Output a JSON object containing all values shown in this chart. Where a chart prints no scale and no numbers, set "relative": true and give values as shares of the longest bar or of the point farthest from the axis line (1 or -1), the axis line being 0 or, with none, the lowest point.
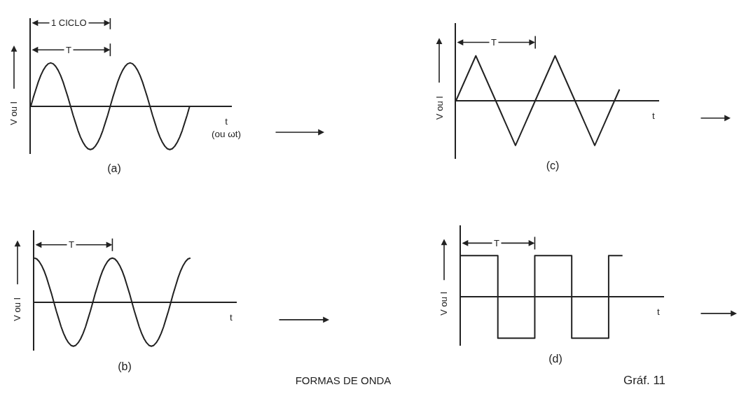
{
  "chart_data": [
    {
      "type": "line",
      "title": "(a)",
      "xlabel": "t\n(ou ωt)",
      "ylabel": "V ou I",
      "annotations": [
        "1 CICLO",
        "T"
      ],
      "relative": true,
      "color": "#222222",
      "categories": [
        null,
        null,
        null,
        null,
        null,
        null,
        null,
        null,
        null,
        null,
        null,
        null,
        null,
        null,
        null,
        null,
        null,
        null,
        null,
        null,
        null,
        null,
        null,
        null,
        null,
        null,
        null,
        null,
        null,
        null,
        null,
        null,
        null,
        null,
        null,
        null,
        null,
        null,
        null,
        null,
        null,
        null,
        null,
        null,
        null,
        null,
        null,
        null,
        null,
        null,
        null,
        null,
        null,
        null,
        null,
        null,
        null,
        null,
        null,
        null,
        null,
        null,
        null,
        null,
        null,
        null,
        null,
        null,
        null,
        null,
        null,
        null,
        null,
        null,
        null,
        null,
        null,
        null,
        null,
        null,
        null,
        null
      ],
      "values": [
        0,
        0.2,
        0.38,
        0.56,
        0.71,
        0.83,
        0.92,
        0.98,
        1,
        0.98,
        0.92,
        0.83,
        0.71,
        0.56,
        0.38,
        0.2,
        0,
        -0.2,
        -0.38,
        -0.56,
        -0.71,
        -0.83,
        -0.92,
        -0.98,
        -1,
        -0.98,
        -0.92,
        -0.83,
        -0.71,
        -0.56,
        -0.38,
        -0.2,
        0,
        0.2,
        0.38,
        0.56,
        0.71,
        0.83,
        0.92,
        0.98,
        1,
        0.98,
        0.92,
        0.83,
        0.71,
        0.56,
        0.38,
        0.2,
        0,
        -0.2,
        -0.38,
        -0.56,
        -0.71,
        -0.83,
        -0.92,
        -0.98,
        -1,
        -0.98,
        -0.92,
        -0.83,
        -0.71,
        -0.56,
        -0.38,
        -0.2,
        0,
        null,
        null,
        null,
        null,
        null,
        null,
        null,
        null,
        null,
        null,
        null,
        null,
        null,
        null,
        null,
        null,
        null
      ]
    },
    {
      "type": "line",
      "title": "(b)",
      "xlabel": "t",
      "ylabel": "V ou I",
      "annotations": [
        "T"
      ],
      "relative": true,
      "color": "#222222",
      "categories": [
        null,
        null,
        null,
        null,
        null,
        null,
        null,
        null,
        null,
        null,
        null,
        null,
        null,
        null,
        null,
        null,
        null,
        null,
        null,
        null,
        null,
        null,
        null,
        null,
        null,
        null,
        null,
        null,
        null,
        null,
        null,
        null,
        null,
        null,
        null,
        null,
        null,
        null,
        null,
        null,
        null,
        null,
        null,
        null,
        null,
        null,
        null,
        null,
        null,
        null,
        null,
        null,
        null,
        null,
        null,
        null,
        null,
        null,
        null,
        null,
        null,
        null,
        null,
        null,
        null,
        null,
        null,
        null,
        null,
        null,
        null,
        null,
        null,
        null,
        null,
        null,
        null,
        null,
        null,
        null,
        null,
        null,
        null,
        null
      ],
      "values": [
        1,
        0.98,
        0.92,
        0.83,
        0.71,
        0.56,
        0.38,
        0.2,
        0,
        -0.2,
        -0.38,
        -0.56,
        -0.71,
        -0.83,
        -0.92,
        -0.98,
        -1,
        -0.98,
        -0.92,
        -0.83,
        -0.71,
        -0.56,
        -0.38,
        -0.2,
        0,
        0.2,
        0.38,
        0.56,
        0.71,
        0.83,
        0.92,
        0.98,
        1,
        0.98,
        0.92,
        0.83,
        0.71,
        0.56,
        0.38,
        0.2,
        0,
        -0.2,
        -0.38,
        -0.56,
        -0.71,
        -0.83,
        -0.92,
        -0.98,
        -1,
        -0.98,
        -0.92,
        -0.83,
        -0.71,
        -0.56,
        -0.38,
        -0.2,
        0,
        0.2,
        0.38,
        0.56,
        0.71,
        0.83,
        0.92,
        0.98,
        1,
        null,
        null,
        null,
        null,
        null,
        null,
        null,
        null,
        null,
        null,
        null,
        null,
        null,
        null,
        null,
        null,
        null,
        null,
        null
      ]
    },
    {
      "type": "line",
      "title": "(c)",
      "xlabel": "t",
      "ylabel": "V ou I",
      "annotations": [
        "T"
      ],
      "relative": true,
      "color": "#222222",
      "categories": [
        null,
        null,
        null,
        null,
        null,
        null,
        null,
        null,
        null,
        null,
        null,
        null,
        null,
        null,
        null,
        null,
        null,
        null,
        null,
        null,
        null,
        null,
        null,
        null,
        null,
        null,
        null,
        null,
        null,
        null,
        null,
        null,
        null,
        null,
        null,
        null,
        null,
        null,
        null,
        null,
        null,
        null
      ],
      "values": [
        0,
        0.25,
        0.5,
        0.75,
        1,
        0.75,
        0.5,
        0.25,
        0,
        -0.25,
        -0.5,
        -0.75,
        -1,
        -0.75,
        -0.5,
        -0.25,
        0,
        0.25,
        0.5,
        0.75,
        1,
        0.75,
        0.5,
        0.25,
        0,
        -0.25,
        -0.5,
        -0.75,
        -1,
        -0.75,
        -0.5,
        -0.25,
        0,
        0.25,
        null,
        null,
        null,
        null,
        null,
        null,
        null,
        null
      ]
    },
    {
      "type": "step",
      "title": "(d)",
      "xlabel": "t",
      "ylabel": "V ou I",
      "annotations": [
        "T"
      ],
      "relative": true,
      "color": "#222222",
      "categories": [
        null,
        null,
        null,
        null,
        null,
        null,
        null,
        null,
        null,
        null,
        null,
        null,
        null,
        null,
        null,
        null,
        null,
        null,
        null,
        null,
        null,
        null,
        null,
        null,
        null,
        null,
        null,
        null,
        null,
        null,
        null,
        null,
        null,
        null,
        null,
        null,
        null,
        null,
        null,
        null,
        null,
        null,
        null,
        null,
        null
      ],
      "values": [
        1,
        1,
        1,
        1,
        1,
        1,
        1,
        1,
        -1,
        -1,
        -1,
        -1,
        -1,
        -1,
        -1,
        -1,
        1,
        1,
        1,
        1,
        1,
        1,
        1,
        1,
        -1,
        -1,
        -1,
        -1,
        -1,
        -1,
        -1,
        -1,
        1,
        1,
        1,
        1,
        null,
        null,
        null,
        null,
        null,
        null,
        null,
        null,
        null
      ]
    },
    {
      "type": "other",
      "title": "FORMAS DE ONDA",
      "annotations": [
        "Gráf. 11"
      ]
    }
  ]
}
